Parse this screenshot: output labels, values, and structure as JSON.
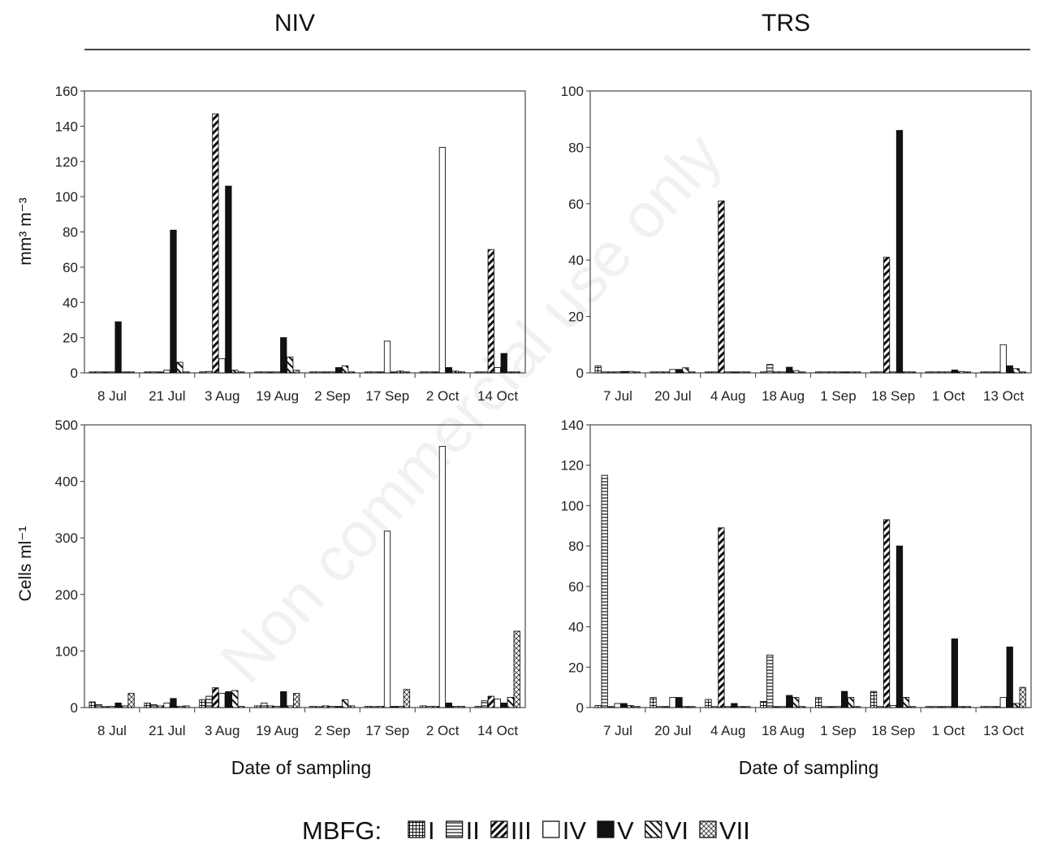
{
  "figure": {
    "headers": [
      "NIV",
      "TRS"
    ],
    "ylabel_top": "mm³ m⁻³",
    "ylabel_bottom": "Cells ml⁻¹",
    "xlabel": "Date of sampling",
    "watermark": "Non commercial use only",
    "legend_title": "MBFG:",
    "legend": [
      {
        "label": "I",
        "pattern": "grid"
      },
      {
        "label": "II",
        "pattern": "hlines"
      },
      {
        "label": "III",
        "pattern": "diag-dense"
      },
      {
        "label": "IV",
        "pattern": "white"
      },
      {
        "label": "V",
        "pattern": "black"
      },
      {
        "label": "VI",
        "pattern": "diag-back"
      },
      {
        "label": "VII",
        "pattern": "cross"
      }
    ]
  },
  "chart_data": [
    {
      "type": "bar",
      "panel": "NIV",
      "ylabel": "mm³ m⁻³",
      "xlabel": "",
      "ylim": [
        0,
        160
      ],
      "yticks": [
        0,
        20,
        40,
        60,
        80,
        100,
        120,
        140,
        160
      ],
      "categories": [
        "8 Jul",
        "21 Jul",
        "3 Aug",
        "19 Aug",
        "2 Sep",
        "17 Sep",
        "2 Oct",
        "14 Oct"
      ],
      "series": [
        {
          "name": "I",
          "values": [
            0.5,
            0.5,
            0.3,
            0.3,
            0.2,
            0.2,
            0.3,
            0.2
          ]
        },
        {
          "name": "II",
          "values": [
            0.5,
            0.5,
            0.8,
            0.3,
            0.3,
            0.3,
            0.3,
            0.3
          ]
        },
        {
          "name": "III",
          "values": [
            0.2,
            0.2,
            147,
            0.2,
            0.2,
            0.2,
            0.2,
            70
          ]
        },
        {
          "name": "IV",
          "values": [
            0.5,
            1.5,
            8,
            0.3,
            0.3,
            18,
            128,
            3
          ]
        },
        {
          "name": "V",
          "values": [
            29,
            81,
            106,
            20,
            3,
            0.5,
            3,
            11
          ]
        },
        {
          "name": "VI",
          "values": [
            0.3,
            6,
            1.5,
            9,
            4,
            1,
            1,
            0.5
          ]
        },
        {
          "name": "VII",
          "values": [
            0.2,
            0.5,
            0.5,
            1.5,
            0.5,
            0.5,
            0.5,
            0.2
          ]
        }
      ]
    },
    {
      "type": "bar",
      "panel": "TRS",
      "ylabel": "",
      "xlabel": "",
      "ylim": [
        0,
        100
      ],
      "yticks": [
        0,
        20,
        40,
        60,
        80,
        100
      ],
      "categories": [
        "7 Jul",
        "20 Jul",
        "4 Aug",
        "18 Aug",
        "1 Sep",
        "18 Sep",
        "1 Oct",
        "13 Oct"
      ],
      "series": [
        {
          "name": "I",
          "values": [
            2.5,
            0.3,
            0.3,
            0.3,
            0.2,
            0.2,
            0.2,
            0.2
          ]
        },
        {
          "name": "II",
          "values": [
            0.2,
            0.3,
            0.2,
            3,
            0.2,
            0.2,
            0.2,
            0.2
          ]
        },
        {
          "name": "III",
          "values": [
            0.2,
            0.3,
            61,
            0.3,
            0.2,
            41,
            0.2,
            0.2
          ]
        },
        {
          "name": "IV",
          "values": [
            0.2,
            1.2,
            0.2,
            0.3,
            0.2,
            0.2,
            0.2,
            10
          ]
        },
        {
          "name": "V",
          "values": [
            0.5,
            1.2,
            0.3,
            2,
            0.3,
            86,
            1,
            2.5
          ]
        },
        {
          "name": "VI",
          "values": [
            0.5,
            1.8,
            0.3,
            0.8,
            0.2,
            0.3,
            0.5,
            1.5
          ]
        },
        {
          "name": "VII",
          "values": [
            0.3,
            0.2,
            0.2,
            0.2,
            0.2,
            0.2,
            0.2,
            0.2
          ]
        }
      ]
    },
    {
      "type": "bar",
      "panel": "NIV",
      "ylabel": "Cells ml⁻¹",
      "xlabel": "Date of sampling",
      "ylim": [
        0,
        500
      ],
      "yticks": [
        0,
        100,
        200,
        300,
        400,
        500
      ],
      "categories": [
        "8 Jul",
        "21 Jul",
        "3 Aug",
        "19 Aug",
        "2 Sep",
        "17 Sep",
        "2 Oct",
        "14 Oct"
      ],
      "series": [
        {
          "name": "I",
          "values": [
            10,
            8,
            14,
            3,
            2,
            2,
            3,
            2
          ]
        },
        {
          "name": "II",
          "values": [
            5,
            5,
            20,
            8,
            1,
            1,
            2,
            12
          ]
        },
        {
          "name": "III",
          "values": [
            0,
            3,
            35,
            3,
            3,
            2,
            2,
            20
          ]
        },
        {
          "name": "IV",
          "values": [
            2,
            8,
            25,
            2,
            2,
            312,
            462,
            15
          ]
        },
        {
          "name": "V",
          "values": [
            8,
            16,
            28,
            28,
            2,
            2,
            8,
            8
          ]
        },
        {
          "name": "VI",
          "values": [
            3,
            2,
            30,
            3,
            14,
            2,
            2,
            18
          ]
        },
        {
          "name": "VII",
          "values": [
            25,
            3,
            2,
            25,
            3,
            32,
            2,
            135
          ]
        }
      ]
    },
    {
      "type": "bar",
      "panel": "TRS",
      "ylabel": "",
      "xlabel": "Date of sampling",
      "ylim": [
        0,
        140
      ],
      "yticks": [
        0,
        20,
        40,
        60,
        80,
        100,
        120,
        140
      ],
      "categories": [
        "7 Jul",
        "20 Jul",
        "4 Aug",
        "18 Aug",
        "1 Sep",
        "18 Sep",
        "1 Oct",
        "13 Oct"
      ],
      "series": [
        {
          "name": "I",
          "values": [
            1,
            5,
            4,
            3,
            5,
            8,
            0.5,
            0.5
          ]
        },
        {
          "name": "II",
          "values": [
            115,
            0.5,
            0.5,
            26,
            0.5,
            0.5,
            0.5,
            0.5
          ]
        },
        {
          "name": "III",
          "values": [
            0.5,
            0.5,
            89,
            0.5,
            0.5,
            93,
            0.5,
            0.5
          ]
        },
        {
          "name": "IV",
          "values": [
            2,
            5,
            0.5,
            0.5,
            0.5,
            1,
            0.5,
            5
          ]
        },
        {
          "name": "V",
          "values": [
            2,
            5,
            2,
            6,
            8,
            80,
            34,
            30
          ]
        },
        {
          "name": "VI",
          "values": [
            1,
            0.5,
            0.5,
            5,
            5,
            5,
            0.5,
            2
          ]
        },
        {
          "name": "VII",
          "values": [
            0.5,
            0.5,
            0.5,
            0.5,
            0.5,
            0.5,
            0.5,
            10
          ]
        }
      ]
    }
  ]
}
